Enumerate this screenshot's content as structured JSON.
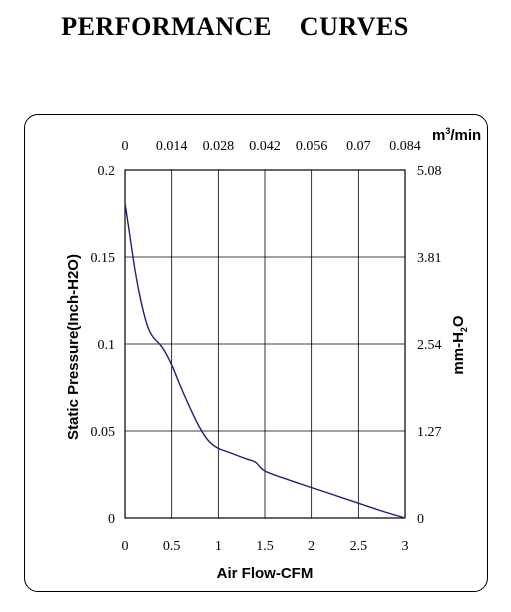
{
  "page_title_left": "PERFORMANCE",
  "page_title_right": "CURVES",
  "chart_data": {
    "type": "line",
    "xlabel": "Air Flow-CFM",
    "ylabel": "Static Pressure(Inch-H2O)",
    "x2label_prefix": "m",
    "x2label_sup": "3",
    "x2label_suffix": "/min",
    "y2label_prefix": "mm-H",
    "y2label_sub": "2",
    "y2label_suffix": "O",
    "xlim": [
      0,
      3
    ],
    "ylim": [
      0,
      0.2
    ],
    "xticks": [
      "0",
      "0.5",
      "1",
      "1.5",
      "2",
      "2.5",
      "3"
    ],
    "yticks": [
      "0",
      "0.05",
      "0.1",
      "0.15",
      "0.2"
    ],
    "x2ticks": [
      "0",
      "0.014",
      "0.028",
      "0.042",
      "0.056",
      "0.07",
      "0.084"
    ],
    "y2ticks": [
      "0",
      "1.27",
      "2.54",
      "3.81",
      "5.08"
    ],
    "grid": true,
    "line_color": "#1f1f7a",
    "series": [
      {
        "x": [
          0,
          0.05,
          0.1,
          0.15,
          0.2,
          0.25,
          0.3,
          0.4,
          0.5,
          0.6,
          0.7,
          0.8,
          0.9,
          1.0,
          1.1,
          1.2,
          1.3,
          1.4,
          1.5,
          1.75,
          2.0,
          2.25,
          2.5,
          2.75,
          3.0
        ],
        "y": [
          0.181,
          0.163,
          0.145,
          0.13,
          0.118,
          0.109,
          0.104,
          0.098,
          0.088,
          0.075,
          0.063,
          0.052,
          0.044,
          0.04,
          0.038,
          0.036,
          0.034,
          0.032,
          0.027,
          0.022,
          0.0175,
          0.013,
          0.0085,
          0.004,
          0.0
        ]
      }
    ]
  }
}
